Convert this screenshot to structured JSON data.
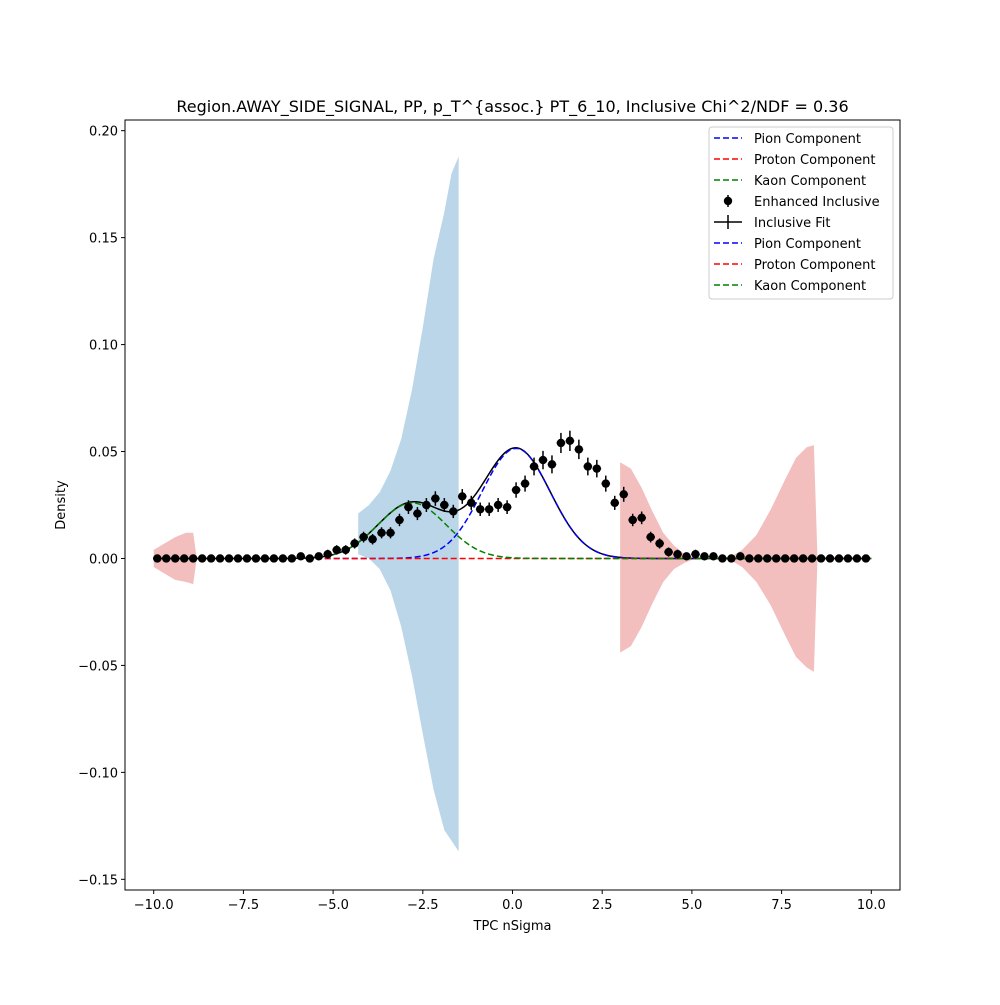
{
  "chart_data": {
    "type": "line",
    "title": "Region.AWAY_SIDE_SIGNAL, PP, p_T^{assoc.} PT_6_10, Inclusive Chi^2/NDF = 0.36",
    "xlabel": "TPC nSigma",
    "ylabel": "Density",
    "xlim": [
      -10.8,
      10.8
    ],
    "ylim": [
      -0.155,
      0.205
    ],
    "grid": false,
    "legend_position": "top-right",
    "x_ticks": [
      -10,
      -7.5,
      -5,
      -2.5,
      0,
      2.5,
      5,
      7.5,
      10
    ],
    "x_tick_labels": [
      "−10.0",
      "−7.5",
      "−5.0",
      "−2.5",
      "0.0",
      "2.5",
      "5.0",
      "7.5",
      "10.0"
    ],
    "y_ticks": [
      -0.15,
      -0.1,
      -0.05,
      0,
      0.05,
      0.1,
      0.15,
      0.2
    ],
    "y_tick_labels": [
      "−0.15",
      "−0.10",
      "−0.05",
      "0.00",
      "0.05",
      "0.10",
      "0.15",
      "0.20"
    ],
    "legend": [
      {
        "label": "Pion Component",
        "color": "#0000ff",
        "style": "dashed"
      },
      {
        "label": "Proton Component",
        "color": "#ff0000",
        "style": "dashed"
      },
      {
        "label": "Kaon Component",
        "color": "#008000",
        "style": "dashed"
      },
      {
        "label": "Enhanced Inclusive",
        "color": "#000000",
        "style": "marker-errorbar"
      },
      {
        "label": "Inclusive Fit",
        "color": "#000000",
        "style": "errorbar-cross"
      },
      {
        "label": "Pion Component",
        "color": "#0000ff",
        "style": "dashed"
      },
      {
        "label": "Proton Component",
        "color": "#ff0000",
        "style": "dashed"
      },
      {
        "label": "Kaon Component",
        "color": "#008000",
        "style": "dashed"
      }
    ],
    "bands": [
      {
        "color": "#1f77b4",
        "opacity": 0.3,
        "x": [
          -4.3,
          -4.0,
          -3.7,
          -3.4,
          -3.1,
          -2.8,
          -2.5,
          -2.2,
          -1.9,
          -1.7,
          -1.5
        ],
        "upper": [
          0.021,
          0.025,
          0.031,
          0.041,
          0.056,
          0.079,
          0.108,
          0.14,
          0.162,
          0.18,
          0.188
        ],
        "lower": [
          0.002,
          0.0,
          -0.005,
          -0.015,
          -0.032,
          -0.055,
          -0.082,
          -0.108,
          -0.127,
          -0.132,
          -0.137
        ]
      },
      {
        "color": "#d62728",
        "opacity": 0.3,
        "x": [
          -10.0,
          -9.7,
          -9.4,
          -9.1,
          -8.9,
          -8.8
        ],
        "upper": [
          0.004,
          0.007,
          0.01,
          0.012,
          0.012,
          0.0
        ],
        "lower": [
          -0.004,
          -0.007,
          -0.01,
          -0.011,
          -0.012,
          0.0
        ]
      },
      {
        "color": "#d62728",
        "opacity": 0.3,
        "x": [
          3.0,
          3.3,
          3.6,
          3.9,
          4.2,
          4.5,
          4.8,
          5.1
        ],
        "upper": [
          0.045,
          0.042,
          0.033,
          0.022,
          0.012,
          0.006,
          0.002,
          0.0
        ],
        "lower": [
          -0.044,
          -0.041,
          -0.032,
          -0.021,
          -0.011,
          -0.005,
          -0.002,
          0.0
        ]
      },
      {
        "color": "#d62728",
        "opacity": 0.3,
        "x": [
          6.0,
          6.4,
          6.8,
          7.2,
          7.6,
          7.9,
          8.2,
          8.4,
          8.5
        ],
        "upper": [
          0.0,
          0.004,
          0.011,
          0.023,
          0.037,
          0.047,
          0.052,
          0.053,
          0.0
        ],
        "lower": [
          0.0,
          -0.004,
          -0.011,
          -0.022,
          -0.036,
          -0.046,
          -0.051,
          -0.053,
          0.0
        ]
      }
    ],
    "points": {
      "name": "Enhanced Inclusive",
      "x": [
        -9.9,
        -9.65,
        -9.4,
        -9.15,
        -8.9,
        -8.65,
        -8.4,
        -8.15,
        -7.9,
        -7.65,
        -7.4,
        -7.15,
        -6.9,
        -6.65,
        -6.4,
        -6.15,
        -5.9,
        -5.65,
        -5.4,
        -5.15,
        -4.9,
        -4.65,
        -4.4,
        -4.15,
        -3.9,
        -3.65,
        -3.4,
        -3.15,
        -2.9,
        -2.65,
        -2.4,
        -2.15,
        -1.9,
        -1.65,
        -1.4,
        -1.15,
        -0.9,
        -0.65,
        -0.4,
        -0.15,
        0.1,
        0.35,
        0.6,
        0.85,
        1.1,
        1.35,
        1.6,
        1.85,
        2.1,
        2.35,
        2.6,
        2.85,
        3.1,
        3.35,
        3.6,
        3.85,
        4.1,
        4.35,
        4.6,
        4.85,
        5.1,
        5.35,
        5.6,
        5.85,
        6.1,
        6.35,
        6.6,
        6.85,
        7.1,
        7.35,
        7.6,
        7.85,
        8.1,
        8.35,
        8.6,
        8.85,
        9.1,
        9.35,
        9.6,
        9.85
      ],
      "y": [
        0,
        0,
        0,
        0,
        0,
        0,
        0,
        0,
        0,
        0,
        0,
        0,
        0,
        0,
        0,
        0,
        0.001,
        0.0,
        0.001,
        0.002,
        0.004,
        0.004,
        0.007,
        0.01,
        0.009,
        0.012,
        0.012,
        0.018,
        0.024,
        0.021,
        0.025,
        0.028,
        0.025,
        0.022,
        0.029,
        0.026,
        0.023,
        0.023,
        0.025,
        0.024,
        0.032,
        0.035,
        0.043,
        0.046,
        0.044,
        0.054,
        0.055,
        0.051,
        0.043,
        0.042,
        0.035,
        0.026,
        0.03,
        0.018,
        0.019,
        0.01,
        0.007,
        0.003,
        0.002,
        0.001,
        0.002,
        0.001,
        0.001,
        0.0,
        0.0,
        0.001,
        0.0,
        0.0,
        0.0,
        0.0,
        0.0,
        0.0,
        0.0,
        0.0,
        0.0,
        0.0,
        0.0,
        0.0,
        0.0,
        0.0
      ]
    },
    "curves": {
      "pion": {
        "amp": 0.0515,
        "mu": 0.1,
        "sigma": 0.95,
        "color": "#0000ff"
      },
      "kaon": {
        "amp": 0.026,
        "mu": -2.8,
        "sigma": 0.95,
        "color": "#008000"
      },
      "proton": {
        "amp": 0.0,
        "mu": -5.0,
        "sigma": 1.0,
        "color": "#ff0000"
      }
    }
  }
}
